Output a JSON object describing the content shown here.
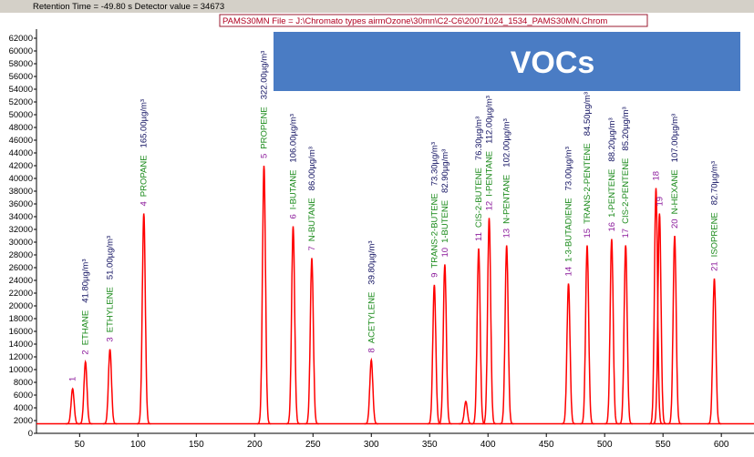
{
  "header": {
    "status": "Retention Time = -49.80 s   Detector value = 34673"
  },
  "chart_data": {
    "type": "line",
    "title": "PAMS30MN File = J:\\Chromato types airmOzone\\30mn\\C2-C6\\20071024_1534_PAMS30MN.Chrom",
    "banner": "VOCs",
    "color": "#ff0000",
    "baseline": 1500,
    "xlim": [
      13,
      628
    ],
    "ylim": [
      0,
      63000
    ],
    "xticks": [
      50,
      100,
      150,
      200,
      250,
      300,
      350,
      400,
      450,
      500,
      550,
      600
    ],
    "yticks": [
      0,
      2000,
      4000,
      6000,
      8000,
      10000,
      12000,
      14000,
      16000,
      18000,
      20000,
      22000,
      24000,
      26000,
      28000,
      30000,
      32000,
      34000,
      36000,
      38000,
      40000,
      42000,
      44000,
      46000,
      48000,
      50000,
      52000,
      54000,
      56000,
      58000,
      60000,
      62000
    ],
    "peaks": [
      {
        "label": "1",
        "time": 44,
        "height": 7000
      },
      {
        "label": "2",
        "name": "ETHANE",
        "amount": "41.80µg/m³",
        "time": 55,
        "height": 11200
      },
      {
        "label": "3",
        "name": "ETHYLENE",
        "amount": "51.00µg/m³",
        "time": 76,
        "height": 13200
      },
      {
        "label": "4",
        "name": "PROPANE",
        "amount": "165.00µg/m³",
        "time": 105,
        "height": 34500
      },
      {
        "label": "5",
        "name": "PROPENE",
        "amount": "322.00µg/m³",
        "time": 208,
        "height": 42000
      },
      {
        "label": "6",
        "name": "I-BUTANE",
        "amount": "106.00µg/m³",
        "time": 233,
        "height": 32500
      },
      {
        "label": "7",
        "name": "N-BUTANE",
        "amount": "86.00µg/m³",
        "time": 249,
        "height": 27500
      },
      {
        "label": "8",
        "name": "ACETYLENE",
        "amount": "39.80µg/m³",
        "time": 300,
        "height": 11500
      },
      {
        "label": "9",
        "name": "TRANS-2-BUTENE",
        "amount": "73.30µg/m³",
        "time": 354,
        "height": 23300
      },
      {
        "label": "10",
        "name": "1-BUTENE",
        "amount": "82.90µg/m³",
        "time": 363,
        "height": 26500
      },
      {
        "time": 381,
        "height": 5000
      },
      {
        "label": "11",
        "name": "CIS-2-BUTENE",
        "amount": "76.30µg/m³",
        "time": 392,
        "height": 29000
      },
      {
        "label": "12",
        "name": "I-PENTANE",
        "amount": "112.00µg/m³",
        "time": 401,
        "height": 33800
      },
      {
        "label": "13",
        "name": "N-PENTANE",
        "amount": "102.00µg/m³",
        "time": 416,
        "height": 29500
      },
      {
        "label": "14",
        "name": "1-3-BUTADIENE",
        "amount": "73.00µg/m³",
        "time": 469,
        "height": 23500
      },
      {
        "label": "15",
        "name": "TRANS-2-PENTENE",
        "amount": "84.50µg/m³",
        "time": 485,
        "height": 29500
      },
      {
        "label": "16",
        "name": "1-PENTENE",
        "amount": "88.20µg/m³",
        "time": 506,
        "height": 30500
      },
      {
        "label": "17",
        "name": "CIS-2-PENTENE",
        "amount": "85.20µg/m³",
        "time": 518,
        "height": 29500
      },
      {
        "label": "18",
        "time": 544,
        "height": 38500
      },
      {
        "label": "19",
        "time": 547,
        "height": 34500
      },
      {
        "label": "20",
        "name": "N-HEXANE",
        "amount": "107.00µg/m³",
        "time": 560,
        "height": 31000
      },
      {
        "label": "21",
        "name": "ISOPRENE",
        "amount": "82.70µg/m³",
        "time": 594,
        "height": 24300
      }
    ]
  }
}
